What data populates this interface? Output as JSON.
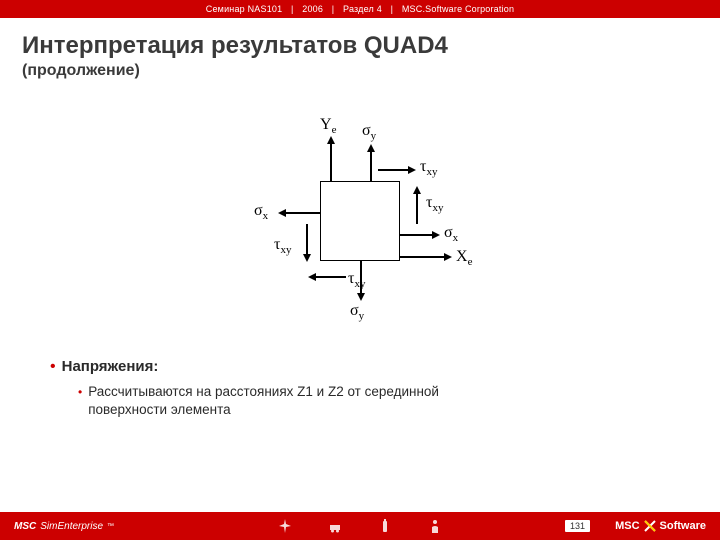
{
  "header": {
    "seminar": "Семинар NAS101",
    "year": "2006",
    "section": "Раздел  4",
    "company": "MSC.Software Corporation"
  },
  "title": "Интерпретация результатов QUAD4",
  "subtitle": "(продолжение)",
  "diagram": {
    "labels": {
      "Ye": "Y<sub>e</sub>",
      "Xe": "X<sub>e</sub>",
      "sigma_y_top": "σ<sub>y</sub>",
      "sigma_y_bot": "σ<sub>y</sub>",
      "sigma_x_left": "σ<sub>x</sub>",
      "sigma_x_right": "σ<sub>x</sub>",
      "tau_top_r": "τ<sub>xy</sub>",
      "tau_right_t": "τ<sub>xy</sub>",
      "tau_left_b": "τ<sub>xy</sub>",
      "tau_bot_l": "τ<sub>xy</sub>"
    }
  },
  "bullets": {
    "b1": "Напряжения:",
    "b2": "Рассчитываются на расстояниях Z1 и Z2 от серединной поверхности элемента"
  },
  "footer": {
    "left_bold": "MSC",
    "left_rest": " SimEnterprise",
    "tm": "™",
    "page": "131",
    "right_a": "MSC",
    "right_b": "Software"
  },
  "colors": {
    "red": "#cc0000",
    "text": "#3a3a3a",
    "black": "#000000",
    "white": "#ffffff"
  }
}
